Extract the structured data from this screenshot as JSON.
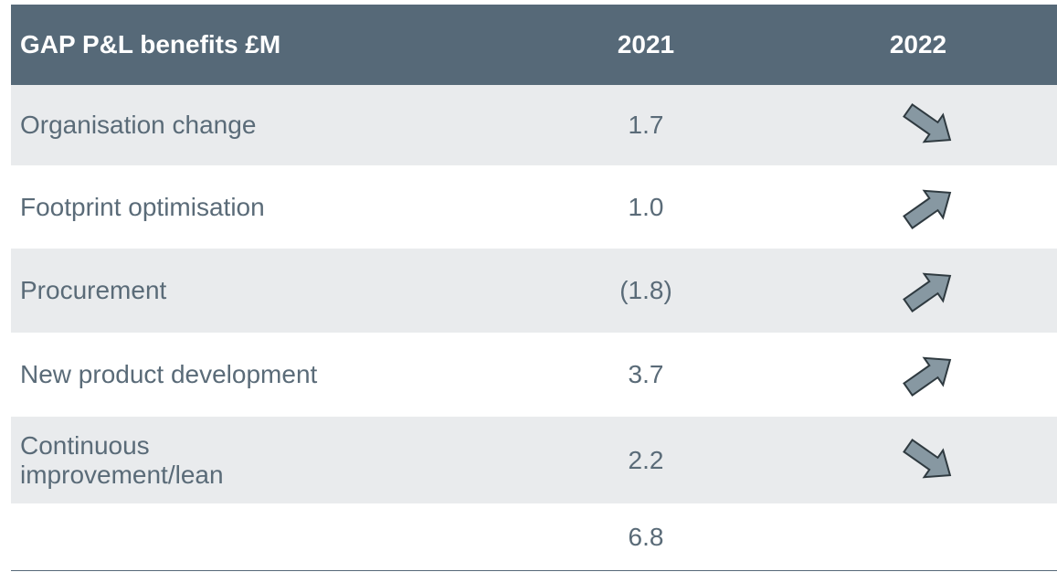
{
  "table": {
    "header": [
      "GAP P&L benefits £M",
      "2021",
      "2022"
    ],
    "rows": [
      {
        "label": "Organisation change",
        "value": "1.7"
      },
      {
        "label": "Footprint optimisation",
        "value": "1.0"
      },
      {
        "label": "Procurement",
        "value": "(1.8)"
      },
      {
        "label": "New product development",
        "value": "3.7"
      },
      {
        "label": "Continuous improvement/lean",
        "value": "2.2"
      }
    ],
    "total": {
      "value": "6.8"
    }
  }
}
